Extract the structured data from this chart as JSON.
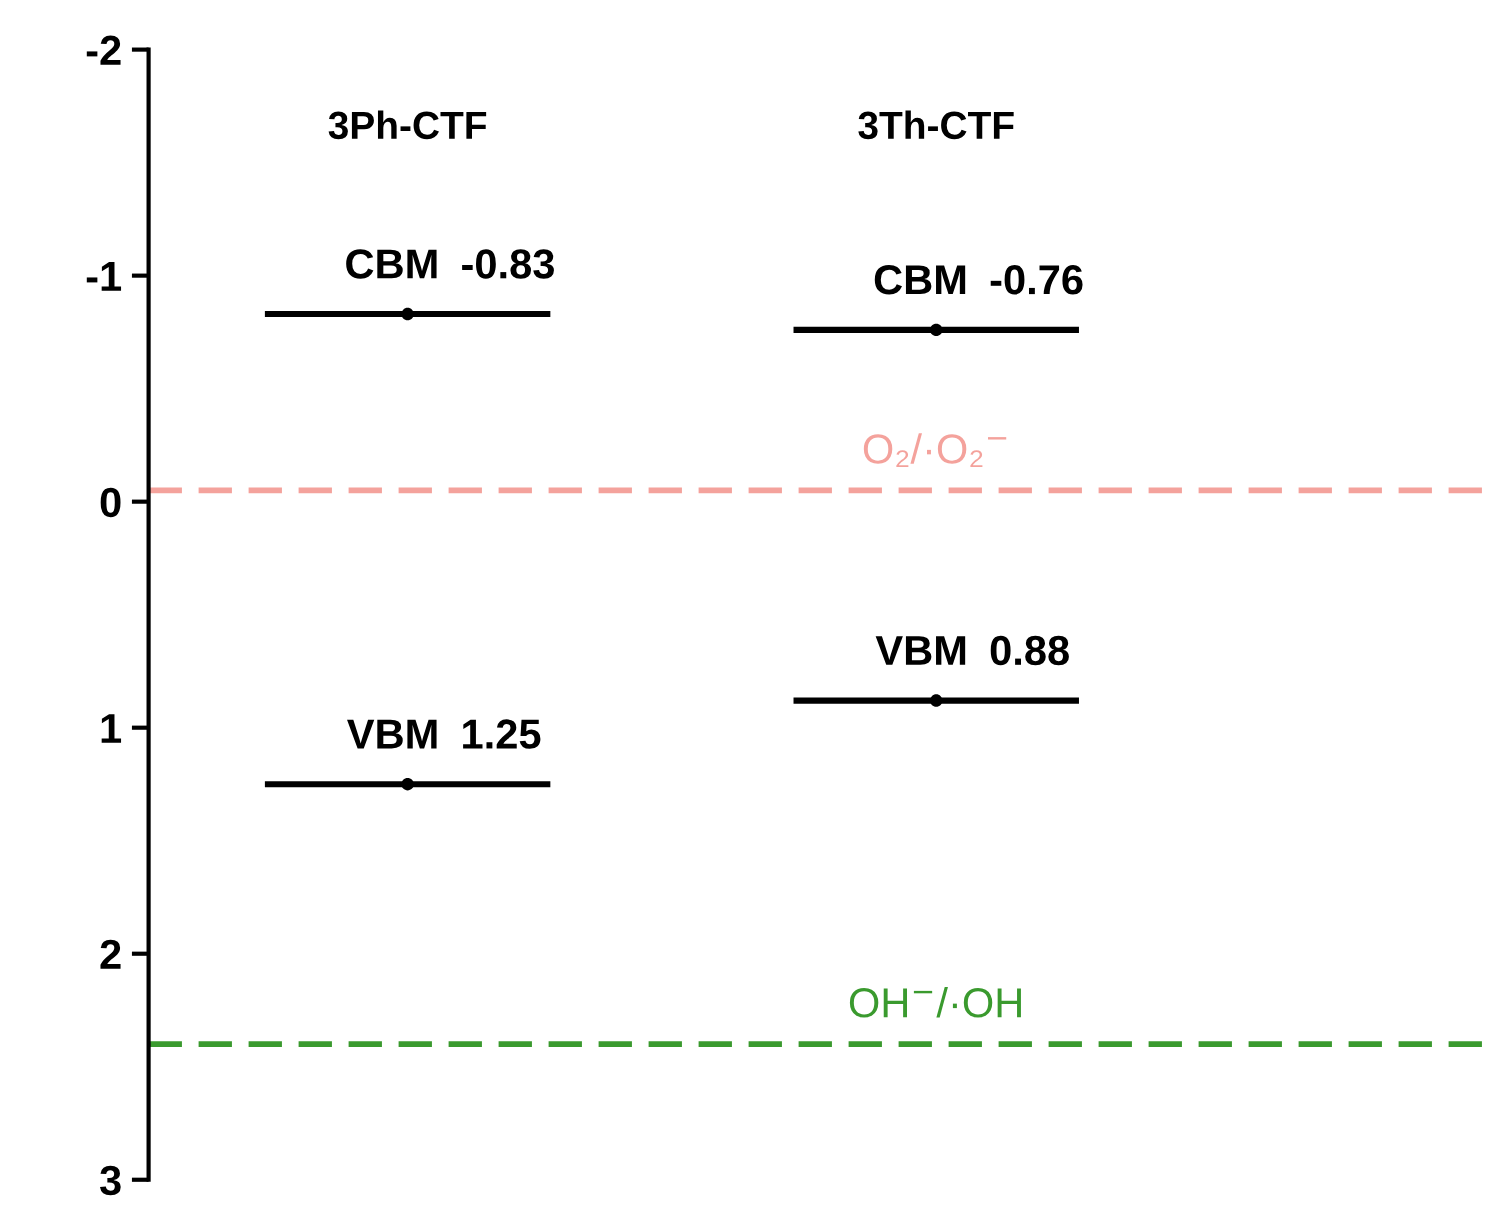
{
  "chart_data": {
    "type": "scatter",
    "categories": [
      "3Ph-CTF",
      "3Th-CTF"
    ],
    "series": [
      {
        "name": "CBM",
        "color": "#000000",
        "values": [
          -0.83,
          -0.76
        ]
      },
      {
        "name": "VBM",
        "color": "#000000",
        "values": [
          1.25,
          0.88
        ]
      }
    ],
    "data_labels": true,
    "ylim": [
      3,
      -2
    ],
    "yticks": [
      -2,
      -1,
      0,
      1,
      2,
      3
    ],
    "ref_lines": [
      {
        "axis": "y",
        "value": -0.05,
        "label": "O₂/·O₂$^{−}$",
        "color": "#f4a29c",
        "line_style": "dashed"
      },
      {
        "axis": "y",
        "value": 2.4,
        "label": "OH$^{−}$/·OH",
        "color": "#3a9a2e",
        "line_style": "dashed"
      }
    ],
    "legend": false
  }
}
